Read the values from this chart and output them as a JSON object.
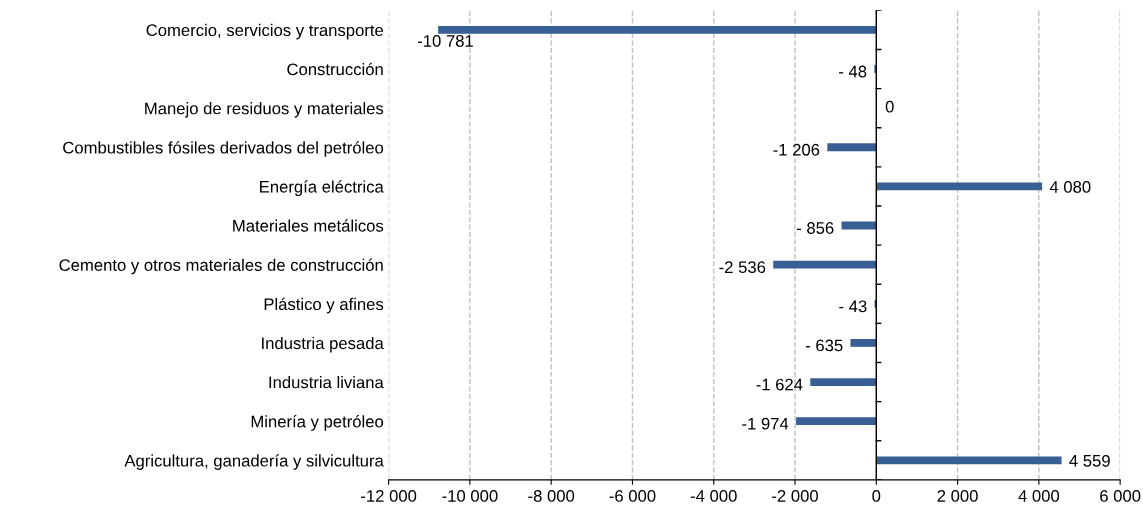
{
  "chart_data": {
    "type": "bar",
    "orientation": "horizontal",
    "categories": [
      "Comercio, servicios y transporte",
      "Construcción",
      "Manejo de residuos y materiales",
      "Combustibles fósiles derivados del petróleo",
      "Energía eléctrica",
      "Materiales metálicos",
      "Cemento y otros materiales de construcción",
      "Plástico y afines",
      "Industria pesada",
      "Industria liviana",
      "Minería y petróleo",
      "Agricultura, ganadería y silvicultura"
    ],
    "values": [
      -10781,
      -48,
      0,
      -1206,
      4080,
      -856,
      -2536,
      -43,
      -635,
      -1624,
      -1974,
      4559
    ],
    "value_labels": [
      "-10 781",
      "- 48",
      "0",
      "-1 206",
      "4 080",
      "- 856",
      "-2 536",
      "- 43",
      "- 635",
      "-1 624",
      "-1 974",
      "4 559"
    ],
    "color": "#375f94",
    "xlim": [
      -12000,
      6000
    ],
    "xticks": [
      {
        "value": -12000,
        "label": "-12 000"
      },
      {
        "value": -10000,
        "label": "-10 000"
      },
      {
        "value": -8000,
        "label": "-8 000"
      },
      {
        "value": -6000,
        "label": "-6 000"
      },
      {
        "value": -4000,
        "label": "-4 000"
      },
      {
        "value": -2000,
        "label": "-2 000"
      },
      0,
      {
        "value": 2000,
        "label": "2 000"
      },
      {
        "value": 4000,
        "label": "4 000"
      },
      {
        "value": 6000,
        "label": "6 000"
      }
    ],
    "grid": "x"
  }
}
